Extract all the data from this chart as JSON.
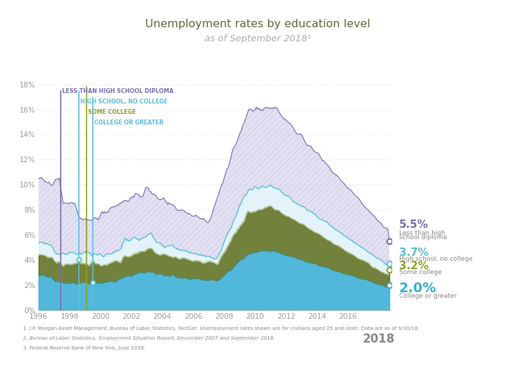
{
  "title_line1": "Unemployment rates by education level",
  "title_line2": "as of September 2018¹",
  "title_color": "#5c6e3c",
  "bg_color": "#ffffff",
  "ylim": [
    0,
    0.18
  ],
  "yticks": [
    0,
    0.02,
    0.04,
    0.06,
    0.08,
    0.1,
    0.12,
    0.14,
    0.16,
    0.18
  ],
  "ytick_labels": [
    "0%",
    "2%",
    "4%",
    "6%",
    "8%",
    "10%",
    "12%",
    "14%",
    "16%",
    "18%"
  ],
  "legend_labels": [
    "LESS THAN HIGH SCHOOL DIPLOMA",
    "HIGH SCHOOL, NO COLLEGE",
    "SOME COLLEGE",
    "COLLEGE OR GREATER"
  ],
  "c_less_hs": "#7b6daa",
  "c_hs": "#5bbfd6",
  "c_some": "#8fa020",
  "c_college": "#3aafd6",
  "fill_less_hs": "#cdc8e8",
  "fill_hs": "#daf0f7",
  "fill_some": "#5e7020",
  "fill_college": "#3aafd6",
  "end_values": {
    "less_hs": 0.055,
    "hs_no_college": 0.037,
    "some_college": 0.032,
    "college": 0.02
  },
  "footnote1": "1. J.P. Morgan Asset Management, Bureau of Labor Statistics, FactSet. Unemployment rates shown are for civilians aged 25 and older. Data are as of 9/30/18.",
  "footnote2": "2. Bureau of Labor Statistics,  Employment Situation Report, December 2007 and September 2018.",
  "footnote3": "3. Federal Reserve Bank of New York, June 2018.",
  "grid_color": "#c8c8c8"
}
